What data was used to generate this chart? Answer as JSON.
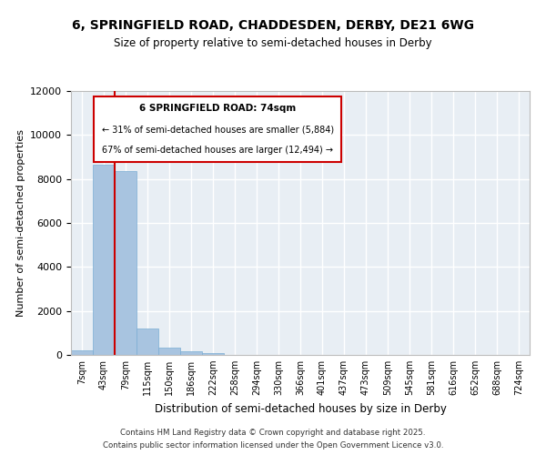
{
  "title_line1": "6, SPRINGFIELD ROAD, CHADDESDEN, DERBY, DE21 6WG",
  "title_line2": "Size of property relative to semi-detached houses in Derby",
  "xlabel": "Distribution of semi-detached houses by size in Derby",
  "ylabel": "Number of semi-detached properties",
  "footer_line1": "Contains HM Land Registry data © Crown copyright and database right 2025.",
  "footer_line2": "Contains public sector information licensed under the Open Government Licence v3.0.",
  "property_label": "6 SPRINGFIELD ROAD: 74sqm",
  "smaller_text": "← 31% of semi-detached houses are smaller (5,884)",
  "larger_text": "67% of semi-detached houses are larger (12,494) →",
  "annotation_box_color": "#cc0000",
  "bar_color": "#a8c4e0",
  "bar_edge_color": "#7aadd4",
  "vline_color": "#cc0000",
  "background_color": "#e8eef4",
  "grid_color": "#ffffff",
  "bin_labels": [
    "7sqm",
    "43sqm",
    "79sqm",
    "115sqm",
    "150sqm",
    "186sqm",
    "222sqm",
    "258sqm",
    "294sqm",
    "330sqm",
    "366sqm",
    "401sqm",
    "437sqm",
    "473sqm",
    "509sqm",
    "545sqm",
    "581sqm",
    "616sqm",
    "652sqm",
    "688sqm",
    "724sqm"
  ],
  "values": [
    200,
    8650,
    8350,
    1200,
    350,
    150,
    80,
    0,
    0,
    0,
    0,
    0,
    0,
    0,
    0,
    0,
    0,
    0,
    0,
    0,
    0
  ],
  "ylim": [
    0,
    12000
  ],
  "yticks": [
    0,
    2000,
    4000,
    6000,
    8000,
    10000,
    12000
  ],
  "vline_x": 1.5
}
